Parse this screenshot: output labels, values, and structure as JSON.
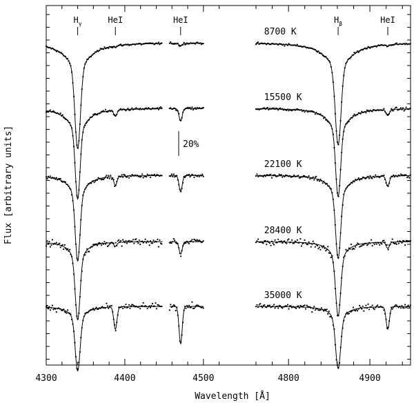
{
  "chart_data": {
    "type": "line",
    "title": "",
    "xlabel": "Wavelength [Å]",
    "ylabel": "Flux [arbitrary units]",
    "scale_bar_label": "20%",
    "scale_bar_fraction": 0.2,
    "panels": [
      {
        "name": "left",
        "xlim": [
          4300,
          4530
        ],
        "ticks": [
          4300,
          4400,
          4500
        ],
        "tick_labels": [
          "4300",
          "4400",
          "4500"
        ],
        "gap_range": [
          4500,
          4530
        ]
      },
      {
        "name": "right",
        "xlim": [
          4760,
          4950
        ],
        "ticks": [
          4800,
          4900
        ],
        "tick_labels": [
          "4800",
          "4900"
        ],
        "gap_range": []
      }
    ],
    "line_ids": [
      {
        "label": "H",
        "sub": "γ",
        "wavelength": 4340
      },
      {
        "label": "HeI",
        "sub": "",
        "wavelength": 4388
      },
      {
        "label": "HeI",
        "sub": "",
        "wavelength": 4471
      },
      {
        "label": "H",
        "sub": "β",
        "wavelength": 4861
      },
      {
        "label": "HeI",
        "sub": "",
        "wavelength": 4922
      }
    ],
    "series": [
      {
        "name": "8700 K",
        "label_wl": 4770,
        "noise": 0.006,
        "lines": [
          {
            "wl": 4340,
            "depth": 0.65,
            "width": 3.5,
            "wing_depth": 0.2,
            "wing_width": 18
          },
          {
            "wl": 4388,
            "depth": 0.01,
            "width": 2.0
          },
          {
            "wl": 4471,
            "depth": 0.02,
            "width": 2.0
          },
          {
            "wl": 4861,
            "depth": 0.62,
            "width": 3.5,
            "wing_depth": 0.2,
            "wing_width": 18
          },
          {
            "wl": 4922,
            "depth": 0.01,
            "width": 2.0
          }
        ]
      },
      {
        "name": "15500 K",
        "label_wl": 4770,
        "noise": 0.008,
        "lines": [
          {
            "wl": 4340,
            "depth": 0.55,
            "width": 3.0,
            "wing_depth": 0.18,
            "wing_width": 14
          },
          {
            "wl": 4388,
            "depth": 0.05,
            "width": 2.0
          },
          {
            "wl": 4471,
            "depth": 0.1,
            "width": 2.0
          },
          {
            "wl": 4861,
            "depth": 0.53,
            "width": 3.0,
            "wing_depth": 0.18,
            "wing_width": 14
          },
          {
            "wl": 4922,
            "depth": 0.05,
            "width": 2.0
          }
        ]
      },
      {
        "name": "22100 K",
        "label_wl": 4770,
        "noise": 0.01,
        "lines": [
          {
            "wl": 4340,
            "depth": 0.52,
            "width": 3.0,
            "wing_depth": 0.17,
            "wing_width": 12
          },
          {
            "wl": 4388,
            "depth": 0.07,
            "width": 2.0
          },
          {
            "wl": 4471,
            "depth": 0.13,
            "width": 2.0
          },
          {
            "wl": 4861,
            "depth": 0.5,
            "width": 3.0,
            "wing_depth": 0.17,
            "wing_width": 12
          },
          {
            "wl": 4922,
            "depth": 0.08,
            "width": 2.0
          }
        ]
      },
      {
        "name": "28400 K",
        "label_wl": 4770,
        "noise": 0.018,
        "lines": [
          {
            "wl": 4340,
            "depth": 0.48,
            "width": 3.0,
            "wing_depth": 0.15,
            "wing_width": 11
          },
          {
            "wl": 4388,
            "depth": 0.03,
            "width": 2.0
          },
          {
            "wl": 4471,
            "depth": 0.1,
            "width": 2.0
          },
          {
            "wl": 4861,
            "depth": 0.45,
            "width": 3.0,
            "wing_depth": 0.15,
            "wing_width": 11
          },
          {
            "wl": 4922,
            "depth": 0.05,
            "width": 2.0
          }
        ]
      },
      {
        "name": "35000 K",
        "label_wl": 4770,
        "noise": 0.016,
        "lines": [
          {
            "wl": 4340,
            "depth": 0.4,
            "width": 3.0,
            "wing_depth": 0.12,
            "wing_width": 10
          },
          {
            "wl": 4388,
            "depth": 0.18,
            "width": 2.0
          },
          {
            "wl": 4471,
            "depth": 0.3,
            "width": 2.0
          },
          {
            "wl": 4861,
            "depth": 0.38,
            "width": 3.0,
            "wing_depth": 0.12,
            "wing_width": 10
          },
          {
            "wl": 4922,
            "depth": 0.18,
            "width": 2.0
          }
        ]
      }
    ]
  }
}
